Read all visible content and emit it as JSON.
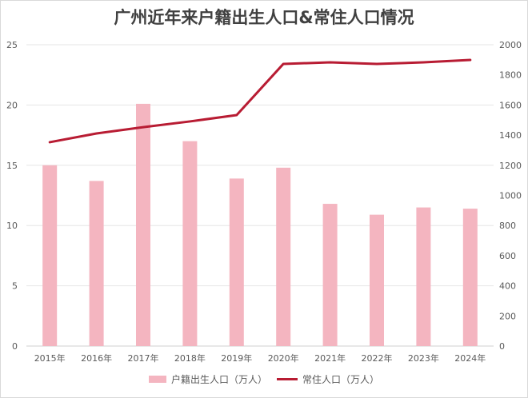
{
  "chart_data": {
    "type": "bar",
    "title": "广州近年来户籍出生人口&常住人口情况",
    "categories": [
      "2015年",
      "2016年",
      "2017年",
      "2018年",
      "2019年",
      "2020年",
      "2021年",
      "2022年",
      "2023年",
      "2024年"
    ],
    "series": [
      {
        "name": "户籍出生人口（万人）",
        "type": "bar",
        "axis": "left",
        "color": "#f4b5c0",
        "values": [
          15.0,
          13.7,
          20.1,
          17.0,
          13.9,
          14.8,
          11.8,
          10.9,
          11.5,
          11.4
        ]
      },
      {
        "name": "常住人口（万人）",
        "type": "line",
        "axis": "right",
        "color": "#b81c33",
        "values": [
          1353,
          1411,
          1453,
          1491,
          1533,
          1873,
          1883,
          1873,
          1883,
          1899
        ]
      }
    ],
    "left_axis": {
      "ylim": [
        0,
        25
      ],
      "ticks": [
        "0",
        "5",
        "10",
        "15",
        "20",
        "25"
      ]
    },
    "right_axis": {
      "ylim": [
        0,
        2000
      ],
      "ticks": [
        "0",
        "200",
        "400",
        "600",
        "800",
        "1000",
        "1200",
        "1400",
        "1600",
        "1800",
        "2000"
      ]
    },
    "xlabel": "",
    "ylabel": "",
    "grid": true,
    "legend_position": "bottom"
  }
}
